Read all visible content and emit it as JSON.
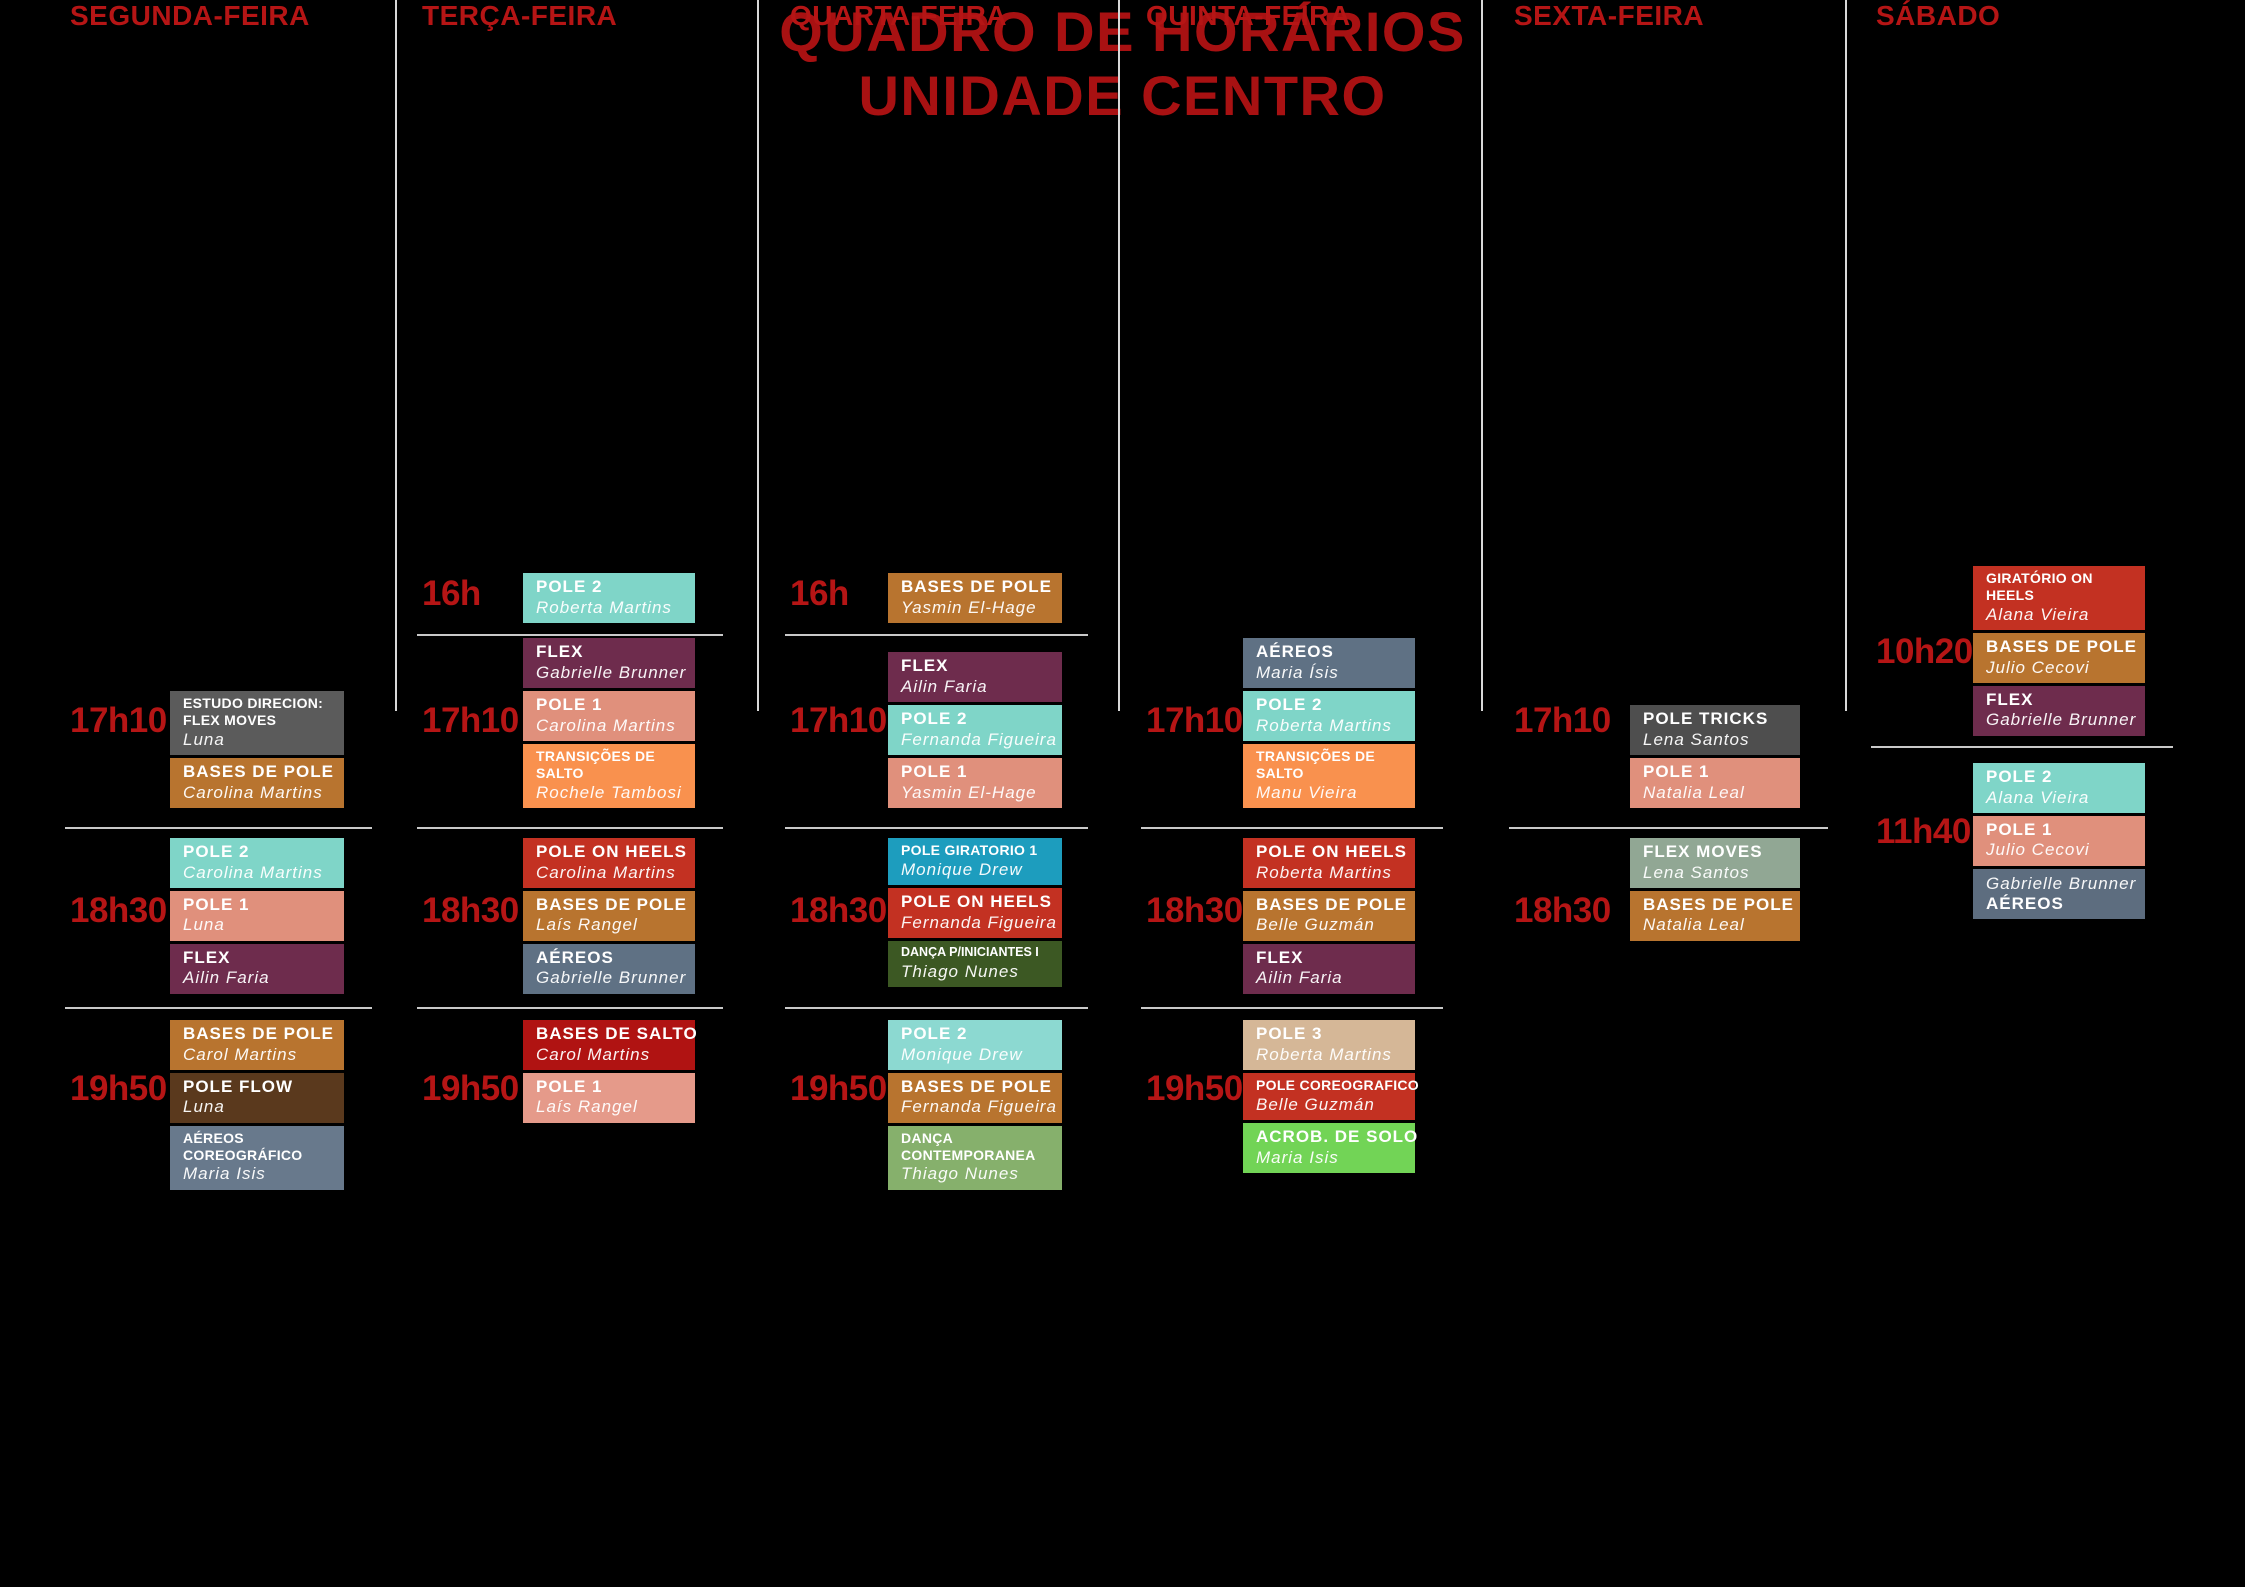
{
  "page": {
    "background": "#000000",
    "accent_red": "#B51515",
    "title_red": "#A81112",
    "divider_color": "#C9C9C9",
    "separator_color": "#D8D8D8",
    "text_white": "#FFFFFF"
  },
  "title": {
    "line1": "QUADRO DE HORÁRIOS",
    "line2": "UNIDADE CENTRO"
  },
  "days": [
    {
      "label": "SEGUNDA-FEIRA",
      "groups": [
        {
          "time": "17h10",
          "divider_after": true,
          "classes": [
            {
              "title_lines": [
                "ESTUDO DIRECION:",
                "FLEX MOVES"
              ],
              "teacher": "Luna",
              "bg": "#5B5B5B",
              "size": "sm"
            },
            {
              "title_lines": [
                "BASES DE POLE"
              ],
              "teacher": "Carolina Martins",
              "bg": "#B8742F"
            }
          ]
        },
        {
          "time": "18h30",
          "divider_after": true,
          "classes": [
            {
              "title_lines": [
                "POLE 2"
              ],
              "teacher": "Carolina Martins",
              "bg": "#7FD5C8"
            },
            {
              "title_lines": [
                "POLE 1"
              ],
              "teacher": "Luna",
              "bg": "#E0907C"
            },
            {
              "title_lines": [
                "FLEX"
              ],
              "teacher": "Ailin Faria",
              "bg": "#6E2C4D"
            }
          ]
        },
        {
          "time": "19h50",
          "divider_after": false,
          "classes": [
            {
              "title_lines": [
                "BASES DE POLE"
              ],
              "teacher": "Carol Martins",
              "bg": "#B8742F"
            },
            {
              "title_lines": [
                "POLE FLOW"
              ],
              "teacher": "Luna",
              "bg": "#5A391D"
            },
            {
              "title_lines": [
                "AÉREOS",
                "COREOGRÁFICO"
              ],
              "teacher": "Maria Isis",
              "bg": "#68798C",
              "size": "sm"
            }
          ]
        }
      ]
    },
    {
      "label": "TERÇA-FEIRA",
      "groups": [
        {
          "time": "16h",
          "divider_after": true,
          "classes": [
            {
              "title_lines": [
                "POLE 2"
              ],
              "teacher": "Roberta Martins",
              "bg": "#7FD5C8"
            }
          ]
        },
        {
          "time": "17h10",
          "divider_after": true,
          "classes": [
            {
              "title_lines": [
                "FLEX"
              ],
              "teacher": "Gabrielle Brunner",
              "bg": "#6E2C4D"
            },
            {
              "title_lines": [
                "POLE 1"
              ],
              "teacher": "Carolina Martins",
              "bg": "#E0907C"
            },
            {
              "title_lines": [
                "TRANSIÇÕES DE",
                "SALTO"
              ],
              "teacher": "Rochele Tambosi",
              "bg": "#F9914E",
              "size": "sm"
            }
          ]
        },
        {
          "time": "18h30",
          "divider_after": true,
          "classes": [
            {
              "title_lines": [
                "POLE ON HEELS"
              ],
              "teacher": "Carolina Martins",
              "bg": "#C33122"
            },
            {
              "title_lines": [
                "BASES DE POLE"
              ],
              "teacher": "Laís Rangel",
              "bg": "#B8742F"
            },
            {
              "title_lines": [
                "AÉREOS"
              ],
              "teacher": "Gabrielle Brunner",
              "bg": "#5F7184"
            }
          ]
        },
        {
          "time": "19h50",
          "divider_after": false,
          "classes": [
            {
              "title_lines": [
                "BASES DE SALTO"
              ],
              "teacher": "Carol Martins",
              "bg": "#B01312"
            },
            {
              "title_lines": [
                "POLE 1"
              ],
              "teacher": "Laís Rangel",
              "bg": "#E59A8A"
            }
          ]
        }
      ]
    },
    {
      "label": "QUARTA-FEIRA",
      "groups": [
        {
          "time": "16h",
          "divider_after": true,
          "classes": [
            {
              "title_lines": [
                "BASES DE POLE"
              ],
              "teacher": "Yasmin El-Hage",
              "bg": "#B8742F"
            }
          ]
        },
        {
          "time": "17h10",
          "divider_after": true,
          "classes": [
            {
              "title_lines": [
                "FLEX"
              ],
              "teacher": "Ailin Faria",
              "bg": "#6E2C4D"
            },
            {
              "title_lines": [
                "POLE 2"
              ],
              "teacher": "Fernanda Figueira",
              "bg": "#7FD5C8"
            },
            {
              "title_lines": [
                "POLE 1"
              ],
              "teacher": "Yasmin El-Hage",
              "bg": "#E0907C"
            }
          ]
        },
        {
          "time": "18h30",
          "divider_after": true,
          "classes": [
            {
              "title_lines": [
                "POLE GIRATORIO 1"
              ],
              "teacher": "Monique Drew",
              "bg": "#1D9DBE",
              "size": "sm"
            },
            {
              "title_lines": [
                "POLE ON HEELS"
              ],
              "teacher": "Fernanda Figueira",
              "bg": "#C33122"
            },
            {
              "title_lines": [
                "DANÇA P/INICIANTES I"
              ],
              "teacher": "Thiago Nunes",
              "bg": "#3C5823",
              "size": "xs"
            }
          ]
        },
        {
          "time": "19h50",
          "divider_after": false,
          "classes": [
            {
              "title_lines": [
                "POLE 2"
              ],
              "teacher": "Monique Drew",
              "bg": "#8CD9D1"
            },
            {
              "title_lines": [
                "BASES DE POLE"
              ],
              "teacher": "Fernanda Figueira",
              "bg": "#B8742F"
            },
            {
              "title_lines": [
                "DANÇA",
                "CONTEMPORANEA"
              ],
              "teacher": "Thiago Nunes",
              "bg": "#86B06C",
              "size": "sm"
            }
          ]
        }
      ]
    },
    {
      "label": "QUINTA-FEIRA",
      "groups": [
        {
          "time": "17h10",
          "divider_after": true,
          "classes": [
            {
              "title_lines": [
                "AÉREOS"
              ],
              "teacher": "Maria Ísis",
              "bg": "#5F7184"
            },
            {
              "title_lines": [
                "POLE 2"
              ],
              "teacher": "Roberta Martins",
              "bg": "#7FD5C8"
            },
            {
              "title_lines": [
                "TRANSIÇÕES DE",
                "SALTO"
              ],
              "teacher": "Manu Vieira",
              "bg": "#F9914E",
              "size": "sm"
            }
          ]
        },
        {
          "time": "18h30",
          "divider_after": true,
          "classes": [
            {
              "title_lines": [
                "POLE ON HEELS"
              ],
              "teacher": "Roberta Martins",
              "bg": "#C33122"
            },
            {
              "title_lines": [
                "BASES DE POLE"
              ],
              "teacher": "Belle Guzmán",
              "bg": "#B8742F"
            },
            {
              "title_lines": [
                "FLEX"
              ],
              "teacher": "Ailin Faria",
              "bg": "#6E2C4D"
            }
          ]
        },
        {
          "time": "19h50",
          "divider_after": false,
          "classes": [
            {
              "title_lines": [
                "POLE 3"
              ],
              "teacher": "Roberta Martins",
              "bg": "#D5B797"
            },
            {
              "title_lines": [
                "POLE COREOGRAFICO"
              ],
              "teacher": "Belle Guzmán",
              "bg": "#C33122",
              "size": "sm"
            },
            {
              "title_lines": [
                "ACROB. DE SOLO"
              ],
              "teacher": "Maria Isis",
              "bg": "#72D456"
            }
          ]
        }
      ]
    },
    {
      "label": "SEXTA-FEIRA",
      "groups": [
        {
          "time": "17h10",
          "divider_after": true,
          "classes": [
            {
              "title_lines": [
                "POLE TRICKS"
              ],
              "teacher": "Lena Santos",
              "bg": "#4E4E4E"
            },
            {
              "title_lines": [
                "POLE 1"
              ],
              "teacher": "Natalia Leal",
              "bg": "#E0907C"
            }
          ]
        },
        {
          "time": "18h30",
          "divider_after": false,
          "classes": [
            {
              "title_lines": [
                "FLEX MOVES"
              ],
              "teacher": "Lena Santos",
              "bg": "#91A794"
            },
            {
              "title_lines": [
                "BASES DE POLE"
              ],
              "teacher": "Natalia Leal",
              "bg": "#B8742F"
            }
          ]
        }
      ]
    },
    {
      "label": "SÁBADO",
      "groups": [
        {
          "time": "10h20",
          "divider_after": true,
          "classes": [
            {
              "title_lines": [
                "GIRATÓRIO ON",
                "HEELS"
              ],
              "teacher": "Alana Vieira",
              "bg": "#C33122",
              "size": "sm"
            },
            {
              "title_lines": [
                "BASES DE POLE"
              ],
              "teacher": "Julio Cecovi",
              "bg": "#B8742F"
            },
            {
              "title_lines": [
                "FLEX"
              ],
              "teacher": "Gabrielle Brunner",
              "bg": "#6E2C4D"
            }
          ]
        },
        {
          "time": "11h40",
          "divider_after": false,
          "classes": [
            {
              "title_lines": [
                "POLE 2"
              ],
              "teacher": "Alana Vieira",
              "bg": "#7FD5C8"
            },
            {
              "title_lines": [
                "POLE 1"
              ],
              "teacher": "Julio Cecovi",
              "bg": "#E0907C"
            },
            {
              "title_lines": [
                "AÉREOS"
              ],
              "teacher": "Gabrielle Brunner",
              "bg": "#5D6D7F",
              "teacher_first": true
            }
          ]
        }
      ]
    }
  ]
}
